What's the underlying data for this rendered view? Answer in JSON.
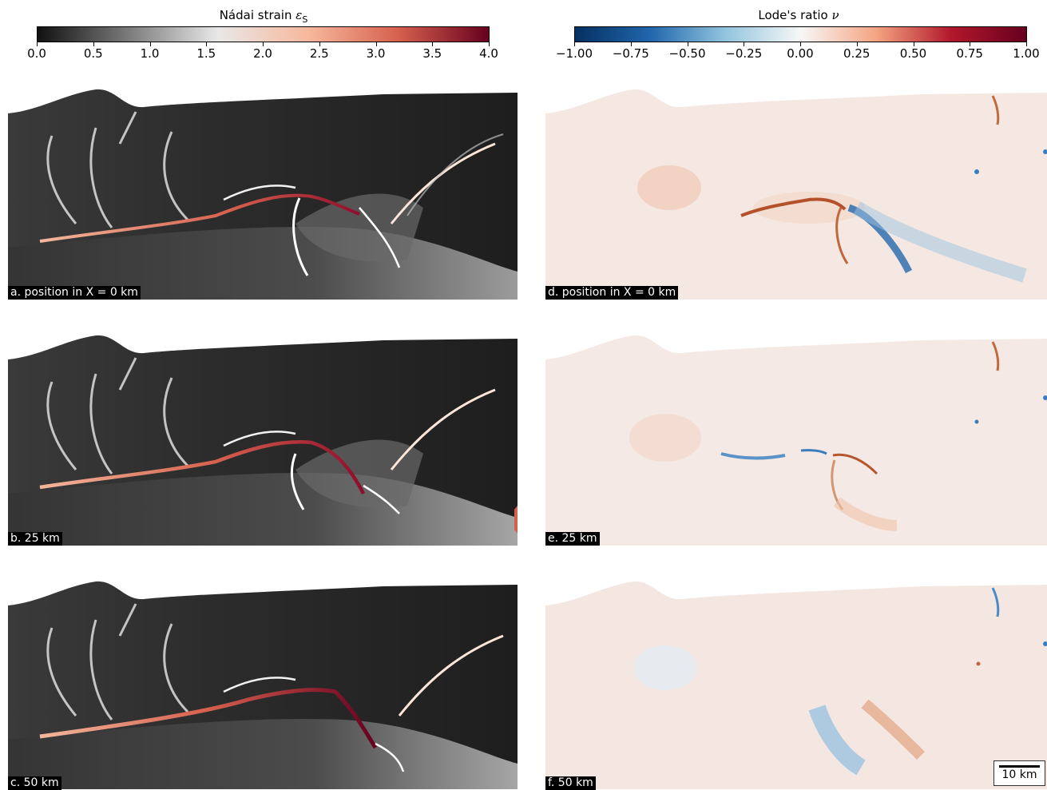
{
  "colorbars": {
    "strain": {
      "title_text": "Nádai strain ",
      "title_symbol": "ε",
      "title_sub": "S",
      "ticks": [
        "0.0",
        "0.5",
        "1.0",
        "1.5",
        "2.0",
        "2.5",
        "3.0",
        "3.5",
        "4.0"
      ],
      "colormap": [
        "#111111",
        "#7a7a7a",
        "#e8e8e8",
        "#f7b89c",
        "#d6604d",
        "#67001f"
      ]
    },
    "lode": {
      "title_text": "Lode's ratio ",
      "title_symbol": "ν",
      "ticks": [
        "−1.00",
        "−0.75",
        "−0.50",
        "−0.25",
        "0.00",
        "0.25",
        "0.50",
        "0.75",
        "1.00"
      ],
      "colormap": [
        "#053061",
        "#2166ac",
        "#92c5de",
        "#f7f7f7",
        "#f4a582",
        "#b2182b",
        "#67001f"
      ]
    }
  },
  "panels": {
    "a": "a. position in X = 0 km",
    "b": "b. 25 km",
    "c": "c. 50 km",
    "d": "d. position in X = 0 km",
    "e": "e. 25 km",
    "f": "f. 50 km"
  },
  "scalebar": {
    "label": "10 km"
  }
}
